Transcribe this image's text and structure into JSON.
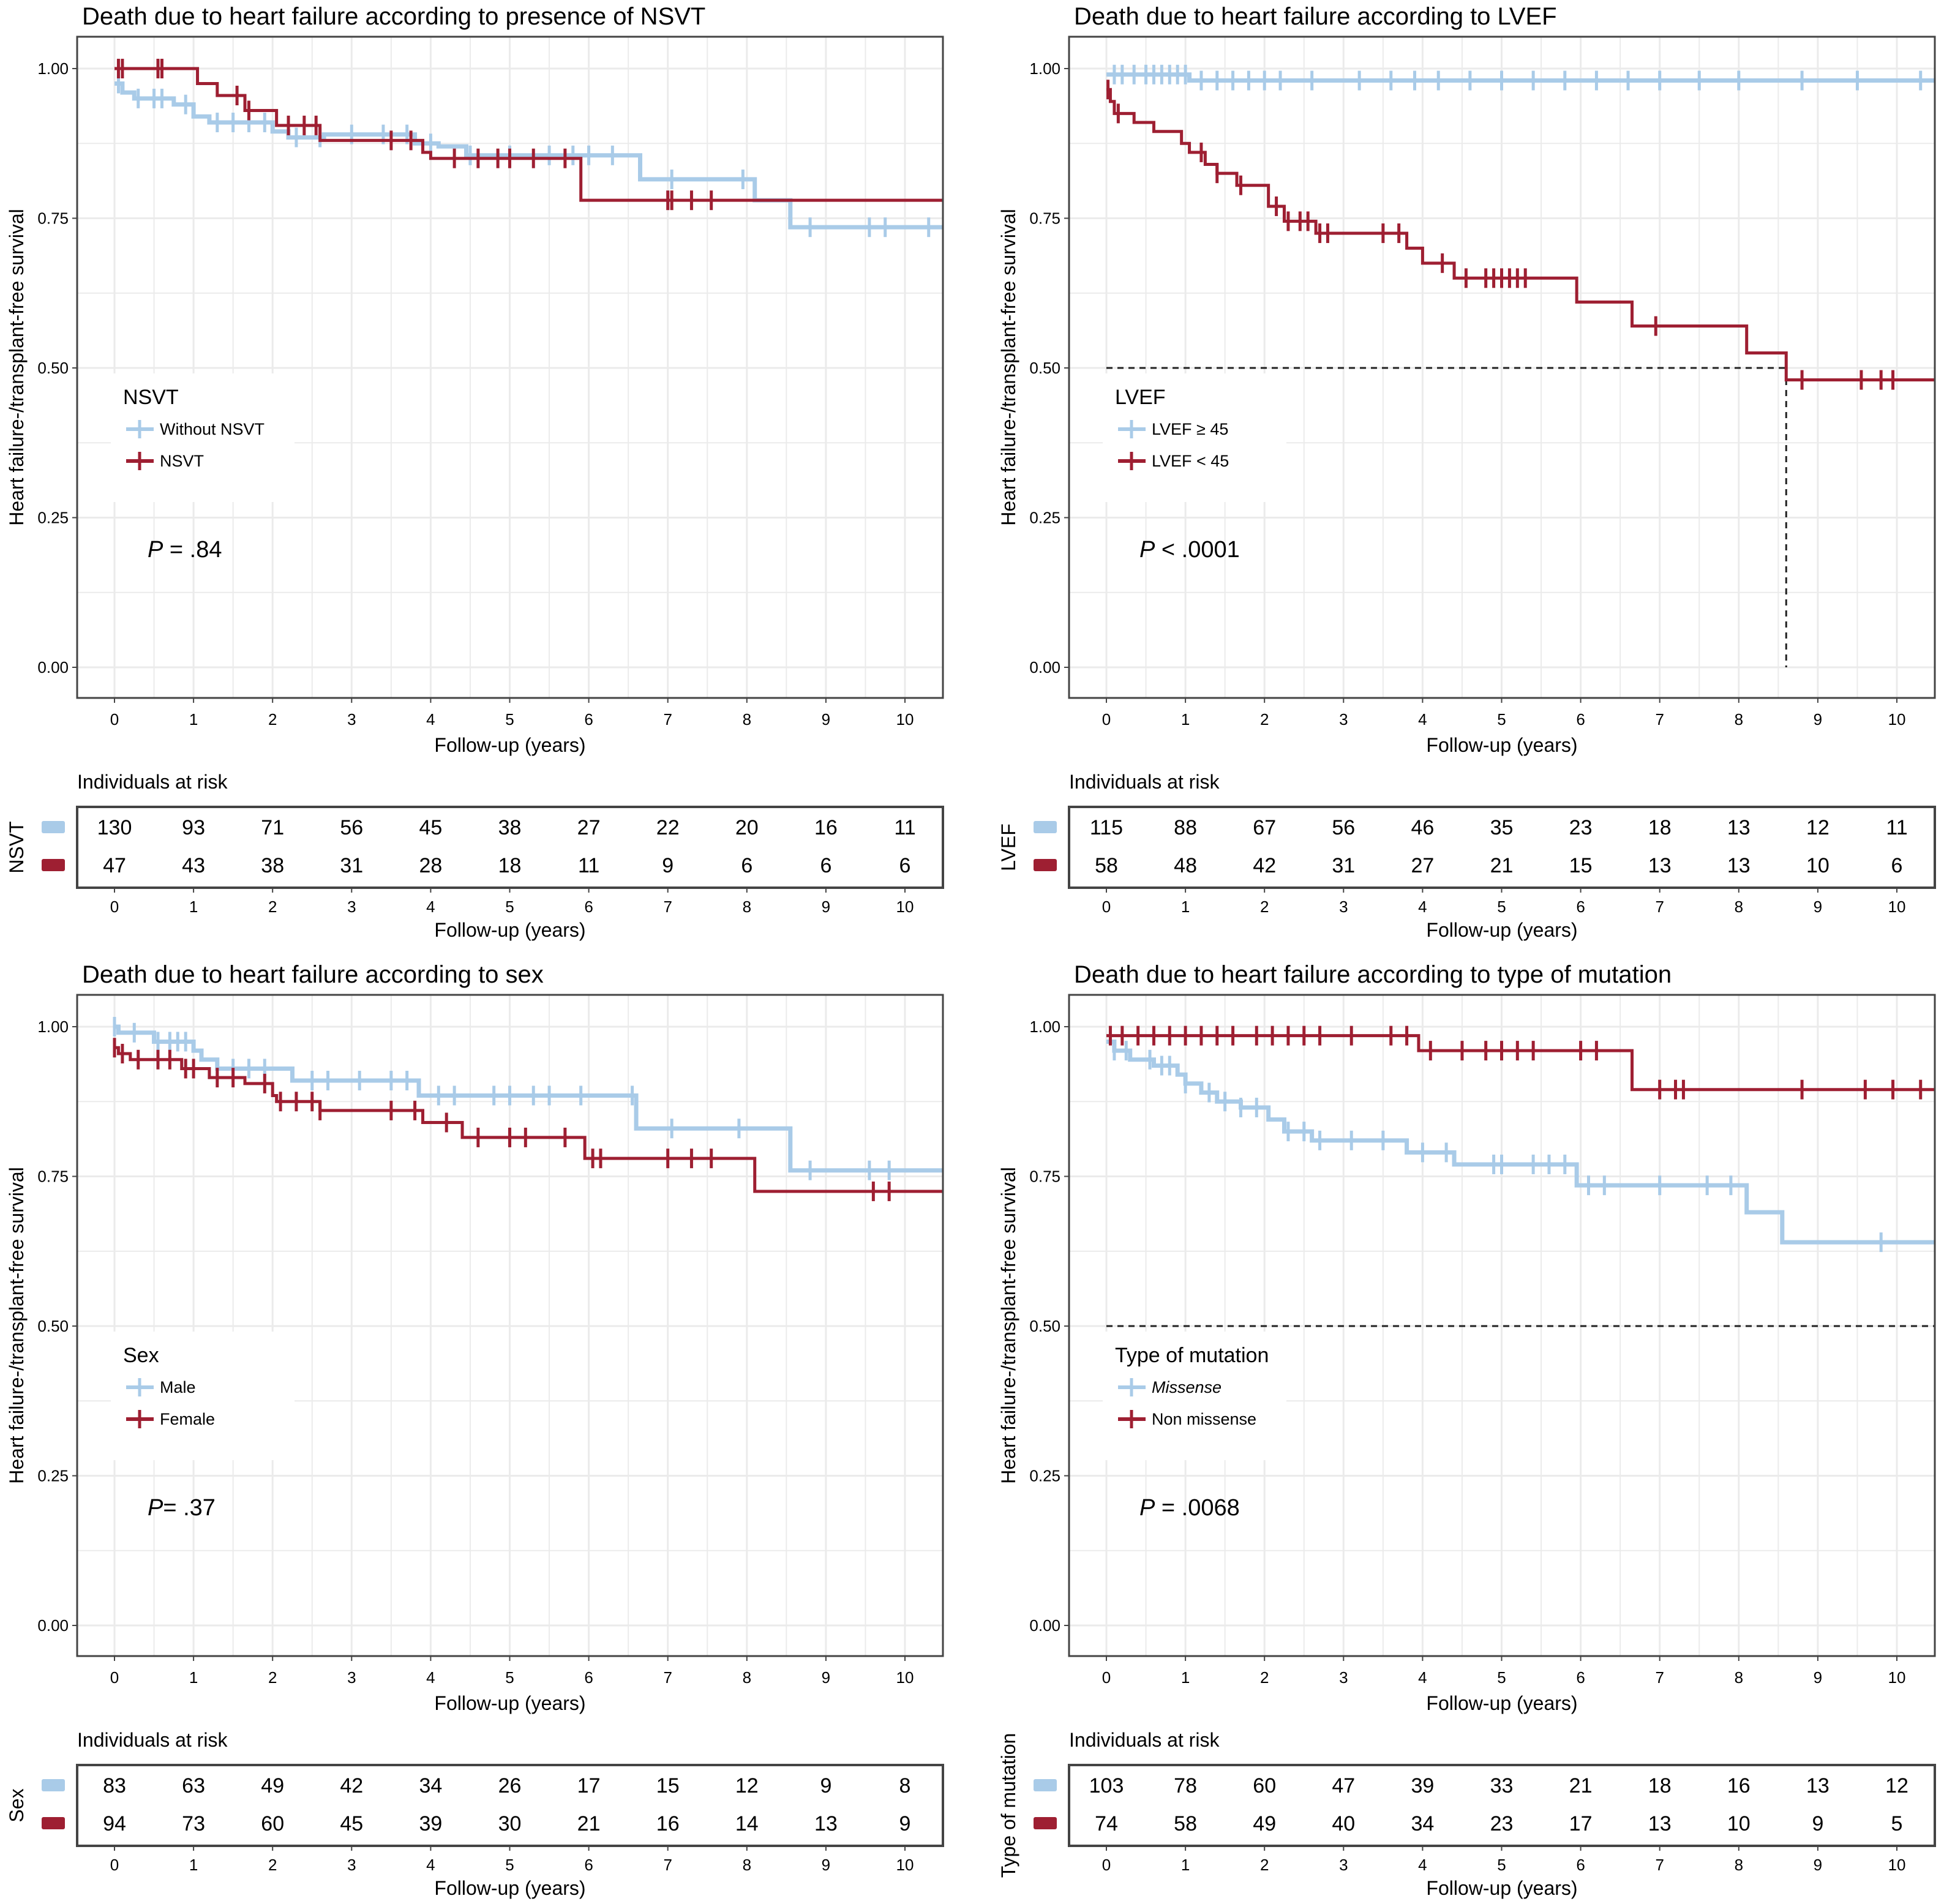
{
  "figure": {
    "colors": {
      "group1": "#a9cbe8",
      "group2": "#9e1f32",
      "grid": "#ebebeb",
      "frame": "#444444",
      "dashed": "#222222"
    },
    "common": {
      "ylabel": "Heart failure-/transplant-free survival",
      "xlabel": "Follow-up (years)",
      "risk_title": "Individuals at risk",
      "xticks": [
        "0",
        "1",
        "2",
        "3",
        "4",
        "5",
        "6",
        "7",
        "8",
        "9",
        "10"
      ],
      "yticks": [
        "0.00",
        "0.25",
        "0.50",
        "0.75",
        "1.00"
      ]
    }
  },
  "chart_data": [
    {
      "type": "line",
      "subtype": "kaplan-meier step",
      "title": "Death due to heart failure according to presence of NSVT",
      "xlabel": "Follow-up (years)",
      "ylabel": "Heart failure-/transplant-free survival",
      "xlim": [
        0,
        10.5
      ],
      "ylim": [
        0,
        1
      ],
      "grid": true,
      "legend": {
        "title": "NSVT",
        "placement": "middle-left",
        "entries": [
          "Without NSVT",
          "NSVT"
        ]
      },
      "p_value": {
        "label": "P",
        "text": " = .84"
      },
      "median_line": null,
      "series": [
        {
          "name": "Without NSVT",
          "color": "#a9cbe8",
          "steps": [
            [
              0,
              0.975
            ],
            [
              0.1,
              0.96
            ],
            [
              0.25,
              0.95
            ],
            [
              0.75,
              0.94
            ],
            [
              1.0,
              0.92
            ],
            [
              1.2,
              0.91
            ],
            [
              2.0,
              0.895
            ],
            [
              2.2,
              0.885
            ],
            [
              2.65,
              0.89
            ],
            [
              3.8,
              0.875
            ],
            [
              4.1,
              0.87
            ],
            [
              4.45,
              0.855
            ],
            [
              6.65,
              0.815
            ],
            [
              8.1,
              0.78
            ],
            [
              8.55,
              0.735
            ],
            [
              10.5,
              0.735
            ]
          ],
          "censors": [
            0.05,
            0.3,
            0.5,
            0.6,
            0.9,
            1.3,
            1.5,
            1.7,
            1.9,
            2.3,
            2.6,
            3.0,
            3.4,
            3.7,
            4.0,
            4.5,
            5.0,
            5.5,
            5.8,
            6.0,
            6.3,
            7.05,
            7.95,
            8.8,
            9.55,
            9.75,
            10.3
          ]
        },
        {
          "name": "NSVT",
          "color": "#9e1f32",
          "steps": [
            [
              0,
              1.0
            ],
            [
              1.05,
              0.975
            ],
            [
              1.3,
              0.955
            ],
            [
              1.65,
              0.93
            ],
            [
              2.05,
              0.905
            ],
            [
              2.6,
              0.88
            ],
            [
              3.9,
              0.86
            ],
            [
              4.0,
              0.85
            ],
            [
              5.9,
              0.78
            ],
            [
              10.5,
              0.78
            ]
          ],
          "censors": [
            0.05,
            0.1,
            0.55,
            0.6,
            1.55,
            1.7,
            2.2,
            2.4,
            2.55,
            3.5,
            3.75,
            4.3,
            4.6,
            4.85,
            5.0,
            5.3,
            5.7,
            7.0,
            7.05,
            7.3,
            7.55
          ]
        }
      ],
      "risk_table": {
        "row_label": "NSVT",
        "rows": [
          {
            "group": "Without NSVT",
            "values": [
              130,
              93,
              71,
              56,
              45,
              38,
              27,
              22,
              20,
              16,
              11
            ]
          },
          {
            "group": "NSVT",
            "values": [
              47,
              43,
              38,
              31,
              28,
              18,
              11,
              9,
              6,
              6,
              6
            ]
          }
        ]
      }
    },
    {
      "type": "line",
      "subtype": "kaplan-meier step",
      "title": "Death due to heart failure according to LVEF",
      "xlabel": "Follow-up (years)",
      "ylabel": "Heart failure-/transplant-free survival",
      "xlim": [
        0,
        10.5
      ],
      "ylim": [
        0,
        1
      ],
      "grid": true,
      "legend": {
        "title": "LVEF",
        "placement": "middle-left",
        "entries": [
          "LVEF ≥ 45",
          "LVEF < 45"
        ]
      },
      "p_value": {
        "label": "P",
        "text": " < .0001"
      },
      "median_line": {
        "y": 0.5,
        "x": 8.6
      },
      "series": [
        {
          "name": "LVEF ≥ 45",
          "color": "#a9cbe8",
          "steps": [
            [
              0,
              0.99
            ],
            [
              1.05,
              0.98
            ],
            [
              10.5,
              0.98
            ]
          ],
          "censors": [
            0.1,
            0.2,
            0.35,
            0.5,
            0.6,
            0.7,
            0.8,
            0.9,
            1.0,
            1.2,
            1.4,
            1.6,
            1.8,
            2.0,
            2.2,
            2.6,
            3.2,
            3.6,
            3.9,
            4.2,
            4.6,
            5.0,
            5.4,
            5.8,
            6.2,
            6.6,
            7.0,
            7.5,
            8.0,
            8.8,
            9.5,
            10.3
          ]
        },
        {
          "name": "LVEF < 45",
          "color": "#9e1f32",
          "steps": [
            [
              0,
              0.965
            ],
            [
              0.05,
              0.945
            ],
            [
              0.1,
              0.925
            ],
            [
              0.35,
              0.91
            ],
            [
              0.6,
              0.895
            ],
            [
              0.95,
              0.875
            ],
            [
              1.05,
              0.86
            ],
            [
              1.25,
              0.84
            ],
            [
              1.4,
              0.825
            ],
            [
              1.65,
              0.805
            ],
            [
              2.05,
              0.77
            ],
            [
              2.25,
              0.745
            ],
            [
              2.65,
              0.725
            ],
            [
              3.8,
              0.7
            ],
            [
              4.0,
              0.675
            ],
            [
              4.4,
              0.65
            ],
            [
              5.95,
              0.61
            ],
            [
              6.65,
              0.57
            ],
            [
              8.1,
              0.525
            ],
            [
              8.6,
              0.48
            ],
            [
              10.5,
              0.48
            ]
          ],
          "censors": [
            0.02,
            0.15,
            1.2,
            1.4,
            1.7,
            2.15,
            2.3,
            2.45,
            2.55,
            2.7,
            2.8,
            3.5,
            3.7,
            4.25,
            4.55,
            4.8,
            4.9,
            5.0,
            5.1,
            5.2,
            5.3,
            6.95,
            8.8,
            9.55,
            9.8,
            9.95
          ]
        }
      ],
      "risk_table": {
        "row_label": "LVEF",
        "rows": [
          {
            "group": "LVEF ≥ 45",
            "values": [
              115,
              88,
              67,
              56,
              46,
              35,
              23,
              18,
              13,
              12,
              11
            ]
          },
          {
            "group": "LVEF < 45",
            "values": [
              58,
              48,
              42,
              31,
              27,
              21,
              15,
              13,
              13,
              10,
              6
            ]
          }
        ]
      }
    },
    {
      "type": "line",
      "subtype": "kaplan-meier step",
      "title": "Death due to heart failure according to sex",
      "xlabel": "Follow-up (years)",
      "ylabel": "Heart failure-/transplant-free survival",
      "xlim": [
        0,
        10.5
      ],
      "ylim": [
        0,
        1
      ],
      "grid": true,
      "legend": {
        "title": "Sex",
        "placement": "middle-left",
        "entries": [
          "Male",
          "Female"
        ]
      },
      "p_value": {
        "label": "P",
        "text": "= .37"
      },
      "median_line": null,
      "series": [
        {
          "name": "Male",
          "color": "#a9cbe8",
          "steps": [
            [
              0,
              1.0
            ],
            [
              0.05,
              0.99
            ],
            [
              0.5,
              0.975
            ],
            [
              1.0,
              0.96
            ],
            [
              1.1,
              0.945
            ],
            [
              1.3,
              0.93
            ],
            [
              2.25,
              0.91
            ],
            [
              3.85,
              0.885
            ],
            [
              6.6,
              0.83
            ],
            [
              8.55,
              0.76
            ],
            [
              10.5,
              0.76
            ]
          ],
          "censors": [
            0.0,
            0.25,
            0.55,
            0.7,
            0.8,
            0.9,
            1.3,
            1.5,
            1.7,
            1.9,
            2.5,
            2.7,
            3.1,
            3.5,
            3.7,
            4.1,
            4.3,
            4.8,
            5.0,
            5.3,
            5.5,
            5.9,
            6.55,
            7.05,
            7.9,
            8.8,
            9.55,
            9.8
          ]
        },
        {
          "name": "Female",
          "color": "#9e1f32",
          "steps": [
            [
              0,
              0.965
            ],
            [
              0.05,
              0.955
            ],
            [
              0.2,
              0.945
            ],
            [
              0.85,
              0.93
            ],
            [
              1.2,
              0.915
            ],
            [
              1.65,
              0.905
            ],
            [
              2.0,
              0.885
            ],
            [
              2.05,
              0.875
            ],
            [
              2.6,
              0.86
            ],
            [
              3.9,
              0.84
            ],
            [
              4.4,
              0.815
            ],
            [
              5.95,
              0.78
            ],
            [
              8.1,
              0.725
            ],
            [
              10.5,
              0.725
            ]
          ],
          "censors": [
            0.0,
            0.1,
            0.3,
            0.55,
            0.7,
            0.9,
            1.0,
            1.3,
            1.5,
            1.9,
            2.1,
            2.3,
            2.5,
            2.6,
            3.5,
            3.8,
            4.2,
            4.6,
            5.0,
            5.2,
            5.7,
            6.05,
            6.15,
            7.0,
            7.3,
            7.55,
            9.6,
            9.8
          ]
        }
      ],
      "risk_table": {
        "row_label": "Sex",
        "rows": [
          {
            "group": "Male",
            "values": [
              83,
              63,
              49,
              42,
              34,
              26,
              17,
              15,
              12,
              9,
              8
            ]
          },
          {
            "group": "Female",
            "values": [
              94,
              73,
              60,
              45,
              39,
              30,
              21,
              16,
              14,
              13,
              9
            ]
          }
        ]
      }
    },
    {
      "type": "line",
      "subtype": "kaplan-meier step",
      "title": "Death due to heart failure according to type of mutation",
      "xlabel": "Follow-up (years)",
      "ylabel": "Heart failure-/transplant-free survival",
      "xlim": [
        0,
        10.5
      ],
      "ylim": [
        0,
        1
      ],
      "grid": true,
      "legend": {
        "title": "Type of mutation",
        "placement": "middle-left",
        "entries": [
          "Missense",
          "Non missense"
        ]
      },
      "p_value": {
        "label": "P",
        "text": " = .0068"
      },
      "median_line": {
        "y": 0.5,
        "x": null
      },
      "series": [
        {
          "name": "Missense",
          "color": "#a9cbe8",
          "steps": [
            [
              0,
              0.975
            ],
            [
              0.1,
              0.96
            ],
            [
              0.3,
              0.945
            ],
            [
              0.6,
              0.935
            ],
            [
              0.9,
              0.92
            ],
            [
              1.0,
              0.905
            ],
            [
              1.2,
              0.89
            ],
            [
              1.4,
              0.875
            ],
            [
              1.7,
              0.865
            ],
            [
              2.05,
              0.845
            ],
            [
              2.25,
              0.825
            ],
            [
              2.6,
              0.81
            ],
            [
              3.8,
              0.79
            ],
            [
              4.4,
              0.77
            ],
            [
              5.95,
              0.735
            ],
            [
              8.1,
              0.69
            ],
            [
              8.55,
              0.64
            ],
            [
              10.5,
              0.64
            ]
          ],
          "censors": [
            0.1,
            0.25,
            0.55,
            0.7,
            0.8,
            1.0,
            1.3,
            1.5,
            1.7,
            1.9,
            2.3,
            2.5,
            2.7,
            3.1,
            3.5,
            4.0,
            4.3,
            4.9,
            5.0,
            5.4,
            5.6,
            5.8,
            6.1,
            6.3,
            7.0,
            7.6,
            7.9,
            9.8
          ]
        },
        {
          "name": "Non missense",
          "color": "#9e1f32",
          "steps": [
            [
              0,
              0.985
            ],
            [
              3.95,
              0.96
            ],
            [
              6.65,
              0.895
            ],
            [
              10.5,
              0.895
            ]
          ],
          "censors": [
            0.05,
            0.2,
            0.4,
            0.6,
            0.8,
            1.0,
            1.2,
            1.4,
            1.6,
            1.9,
            2.1,
            2.3,
            2.5,
            2.7,
            3.1,
            3.6,
            3.8,
            4.1,
            4.5,
            4.8,
            5.0,
            5.2,
            5.4,
            6.0,
            6.2,
            7.0,
            7.2,
            7.3,
            8.8,
            9.6,
            9.95,
            10.3
          ]
        }
      ],
      "risk_table": {
        "row_label": "Type of mutation",
        "rows": [
          {
            "group": "Missense",
            "values": [
              103,
              78,
              60,
              47,
              39,
              33,
              21,
              18,
              16,
              13,
              12
            ]
          },
          {
            "group": "Non missense",
            "values": [
              74,
              58,
              49,
              40,
              34,
              23,
              17,
              13,
              10,
              9,
              5
            ]
          }
        ]
      }
    }
  ]
}
